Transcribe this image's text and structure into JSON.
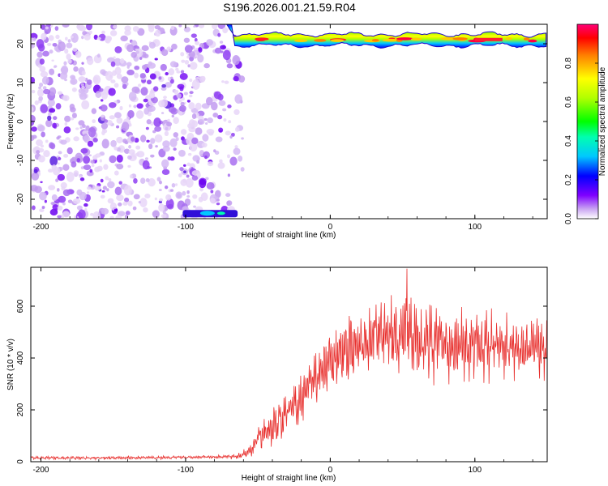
{
  "title": "S196.2026.001.21.59.R04",
  "colors": {
    "snr_line": "#e8312f",
    "axis": "#000000",
    "background": "#ffffff"
  },
  "chart_data": [
    {
      "type": "heatmap",
      "title": "",
      "xlabel": "Height of straight line (km)",
      "ylabel": "Frequency (Hz)",
      "xlim": [
        -207,
        150
      ],
      "ylim": [
        -25,
        25
      ],
      "xticks": [
        -200,
        -100,
        0,
        100
      ],
      "yticks": [
        -20,
        -10,
        0,
        10,
        20
      ],
      "grid": false,
      "colorbar": {
        "label": "Normalized spectral amplitude",
        "range": [
          0,
          1
        ],
        "ticks": [
          0.0,
          0.2,
          0.4,
          0.6,
          0.8
        ],
        "colormap": "rainbow"
      },
      "regions": [
        {
          "description": "scattered low-amplitude noise",
          "x": [
            -207,
            -60
          ],
          "y": [
            -25,
            25
          ],
          "amplitude": [
            0.05,
            0.25
          ]
        },
        {
          "description": "tone band near 20 Hz",
          "x": [
            -66,
            150
          ],
          "y": [
            19,
            23
          ],
          "amplitude": [
            0.2,
            1.0
          ]
        },
        {
          "description": "short band near -24 Hz",
          "x": [
            -102,
            -64
          ],
          "y": [
            -25,
            -23
          ],
          "amplitude": [
            0.2,
            0.5
          ]
        }
      ]
    },
    {
      "type": "line",
      "title": "",
      "xlabel": "Height of straight line (km)",
      "ylabel": "SNR (10 * v/v)",
      "xlim": [
        -207,
        150
      ],
      "ylim": [
        0,
        750
      ],
      "xticks": [
        -200,
        -100,
        0,
        100
      ],
      "yticks": [
        0,
        200,
        400,
        600
      ],
      "grid": false,
      "series": [
        {
          "color": "#e8312f",
          "x": [
            -207,
            -180,
            -150,
            -120,
            -100,
            -80,
            -65,
            -55,
            -50,
            -45,
            -40,
            -35,
            -30,
            -25,
            -20,
            -15,
            -10,
            -5,
            0,
            5,
            10,
            15,
            20,
            25,
            30,
            35,
            40,
            45,
            50,
            55,
            60,
            70,
            80,
            90,
            100,
            110,
            120,
            130,
            140,
            150
          ],
          "values": [
            15,
            14,
            15,
            16,
            17,
            18,
            20,
            40,
            90,
            110,
            130,
            160,
            190,
            220,
            250,
            290,
            320,
            350,
            380,
            400,
            420,
            440,
            460,
            470,
            480,
            490,
            480,
            490,
            500,
            490,
            480,
            470,
            460,
            450,
            445,
            440,
            435,
            440,
            445,
            440
          ],
          "amplitude": [
            6,
            6,
            6,
            6,
            6,
            6,
            10,
            25,
            45,
            60,
            70,
            80,
            85,
            90,
            95,
            100,
            100,
            110,
            110,
            120,
            120,
            130,
            130,
            135,
            140,
            140,
            140,
            145,
            145,
            140,
            140,
            140,
            135,
            130,
            130,
            125,
            125,
            120,
            120,
            120
          ],
          "peaks": [
            {
              "x": 53,
              "y": 745
            }
          ]
        }
      ]
    }
  ]
}
